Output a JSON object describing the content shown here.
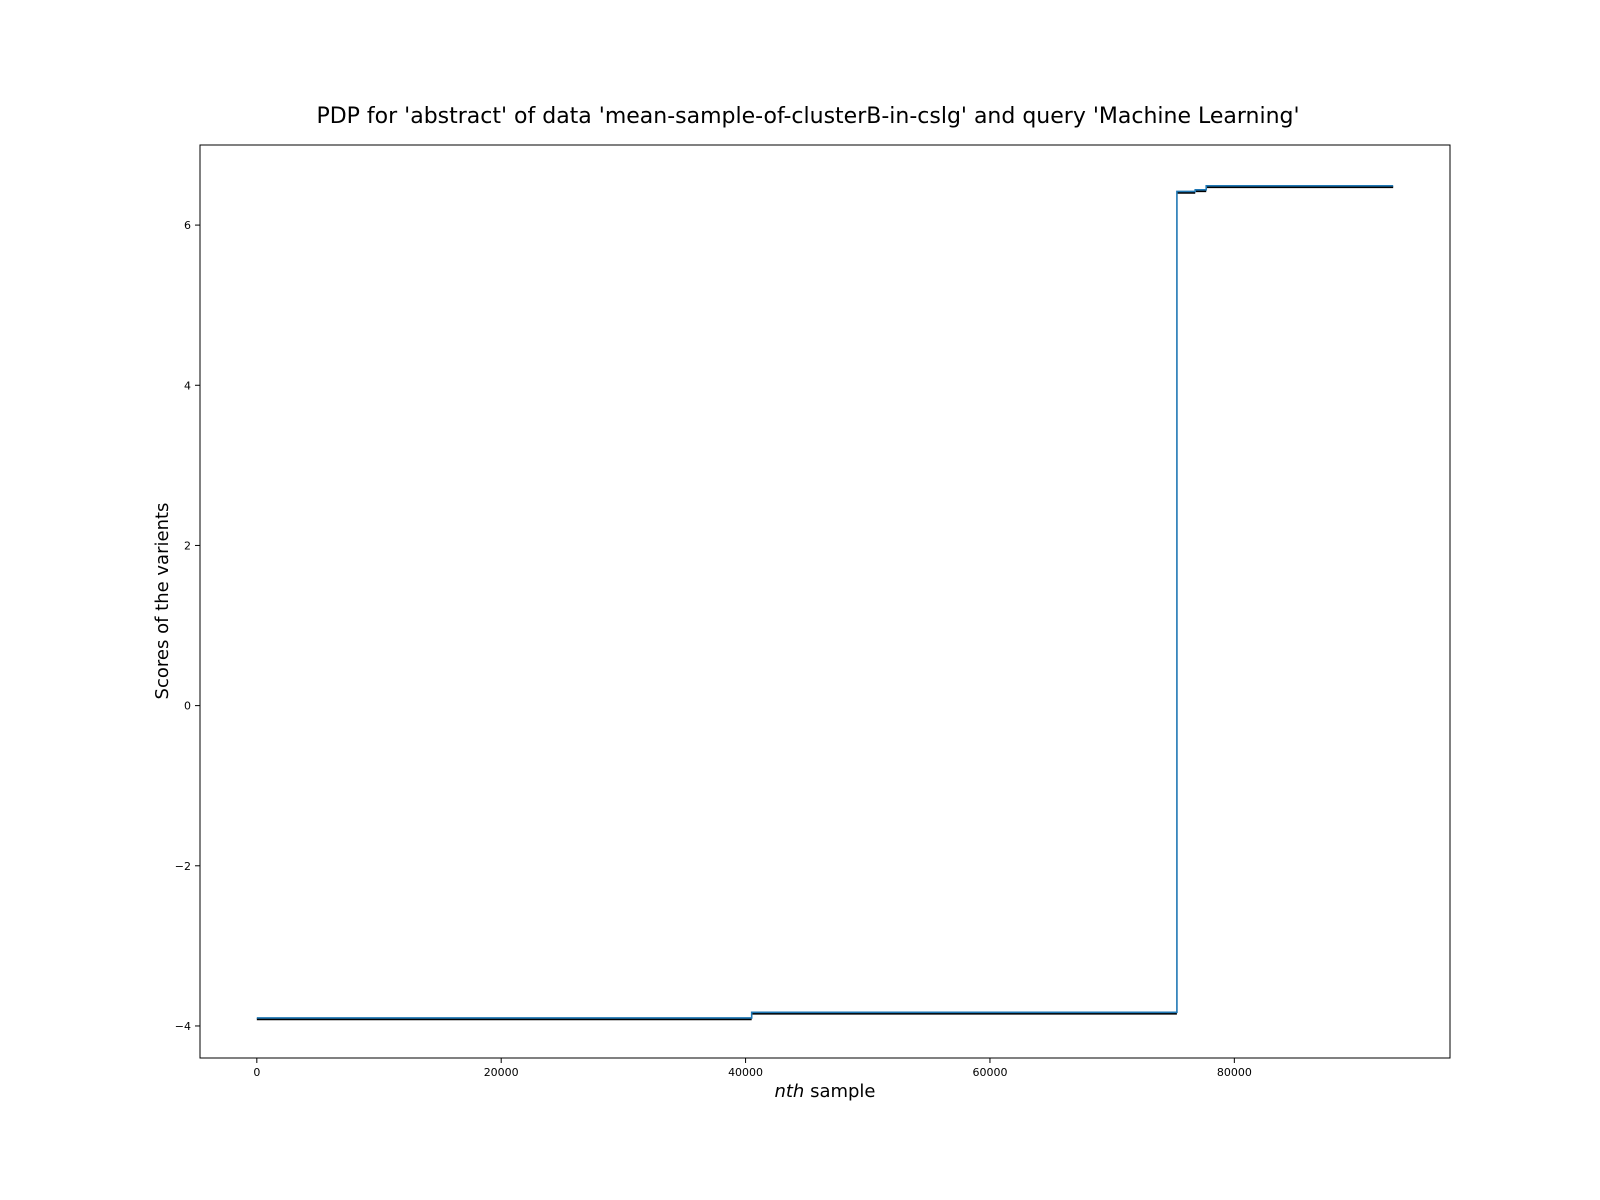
{
  "chart_data": {
    "type": "line",
    "title": "PDP for 'abstract' of data 'mean-sample-of-clusterB-in-cslg' and query 'Machine Learning'",
    "xlabel_italic": "nth",
    "xlabel_rest": " sample",
    "ylabel": "Scores of the varients",
    "xlim": [
      -4650,
      97650
    ],
    "ylim": [
      -4.4,
      7.0
    ],
    "xticks": [
      0,
      20000,
      40000,
      60000,
      80000
    ],
    "xtick_labels": [
      "0",
      "20000",
      "40000",
      "60000",
      "80000"
    ],
    "yticks": [
      -4,
      -2,
      0,
      2,
      4,
      6
    ],
    "ytick_labels": [
      "−4",
      "−2",
      "0",
      "2",
      "4",
      "6"
    ],
    "grid": false,
    "line_color": "#1f77b4",
    "step_color": "#000000",
    "series": [
      {
        "x": [
          0,
          40500,
          40500,
          75300,
          75300,
          76800,
          76800,
          77700,
          77700,
          93000
        ],
        "y": [
          -3.9,
          -3.9,
          -3.83,
          -3.83,
          6.42,
          6.42,
          6.44,
          6.44,
          6.49,
          6.49
        ]
      }
    ],
    "segments": [
      {
        "x0": 0,
        "x1": 40500,
        "y": -3.9
      },
      {
        "x0": 40500,
        "x1": 75300,
        "y": -3.83
      },
      {
        "x0": 75300,
        "x1": 76800,
        "y": 6.42
      },
      {
        "x0": 76800,
        "x1": 77700,
        "y": 6.44
      },
      {
        "x0": 77700,
        "x1": 93000,
        "y": 6.49
      }
    ]
  }
}
